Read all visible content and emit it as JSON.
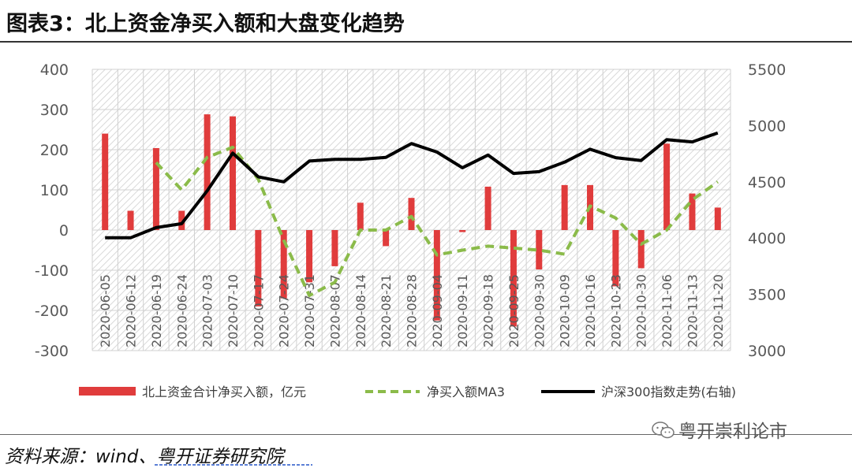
{
  "title": "图表3：北上资金净买入额和大盘变化趋势",
  "source": "资料来源：wind、粤开证券研究院",
  "watermark": "粤开崇利论市",
  "colors": {
    "bar": "#e03c3c",
    "ma3": "#8bbb4a",
    "index": "#000000",
    "hatch": "#d9d9d9"
  },
  "chart_data": {
    "type": "bar+line",
    "categories": [
      "2020-06-05",
      "2020-06-12",
      "2020-06-19",
      "2020-06-24",
      "2020-07-03",
      "2020-07-10",
      "2020-07-17",
      "2020-07-24",
      "2020-07-31",
      "2020-08-07",
      "2020-08-14",
      "2020-08-21",
      "2020-08-28",
      "2020-09-04",
      "2020-09-11",
      "2020-09-18",
      "2020-09-25",
      "2020-09-30",
      "2020-10-09",
      "2020-10-16",
      "2020-10-23",
      "2020-10-30",
      "2020-11-06",
      "2020-11-13",
      "2020-11-20"
    ],
    "y_left": {
      "ticks": [
        "400",
        "300",
        "200",
        "100",
        "0",
        "-100",
        "-200",
        "-300"
      ],
      "range": [
        -300,
        400
      ]
    },
    "y_right": {
      "ticks": [
        "5500",
        "5000",
        "4500",
        "4000",
        "3500",
        "3000"
      ],
      "range": [
        3000,
        5500
      ]
    },
    "series": [
      {
        "name": "北上资金合计净买入额，亿元",
        "type": "bar",
        "axis": "left",
        "values": [
          240,
          48,
          204,
          48,
          288,
          283,
          -190,
          -170,
          -130,
          -90,
          68,
          -40,
          80,
          -225,
          -5,
          108,
          -240,
          -98,
          112,
          112,
          -140,
          -95,
          215,
          91,
          56
        ]
      },
      {
        "name": "净买入额MA3",
        "type": "line",
        "axis": "left",
        "dashed": true,
        "values": [
          null,
          null,
          168,
          100,
          181,
          206,
          127,
          -25,
          -163,
          -130,
          0,
          0,
          34,
          -62,
          -50,
          -40,
          -45,
          -50,
          -60,
          60,
          30,
          -35,
          0,
          75,
          120
        ]
      },
      {
        "name": "沪深300指数走势(右轴)",
        "type": "line",
        "axis": "right",
        "values": [
          4003,
          4003,
          4093,
          4128,
          4420,
          4755,
          4545,
          4500,
          4685,
          4700,
          4700,
          4718,
          4840,
          4765,
          4625,
          4738,
          4575,
          4590,
          4675,
          4790,
          4715,
          4690,
          4875,
          4855,
          4935
        ]
      }
    ],
    "legend_position": "bottom",
    "grid": true
  }
}
